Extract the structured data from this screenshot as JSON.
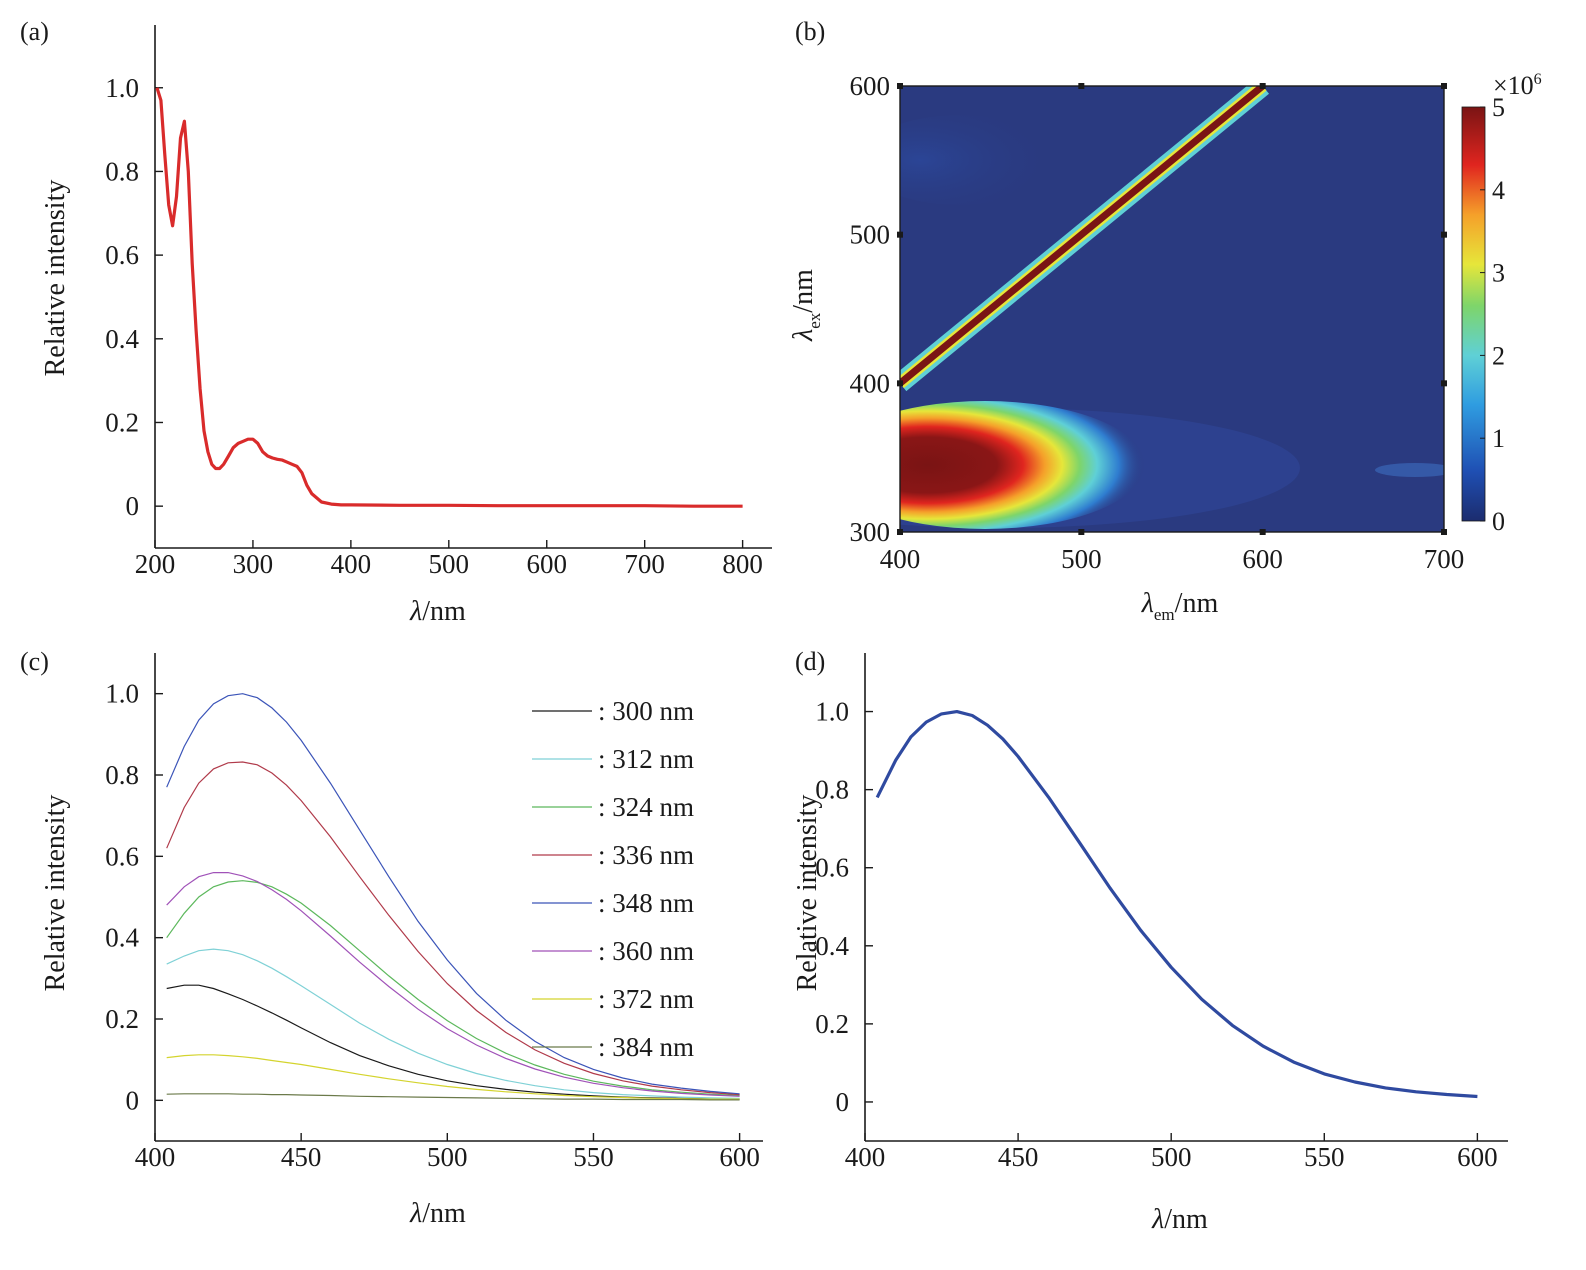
{
  "chart_data": [
    {
      "panel": "a",
      "panel_label": "(a)",
      "type": "line",
      "xlabel_symbol": "λ",
      "xlabel_unit": "/nm",
      "ylabel": "Relative intensity",
      "xlim": [
        200,
        830
      ],
      "ylim": [
        -0.1,
        1.15
      ],
      "xticks": [
        200,
        300,
        400,
        500,
        600,
        700,
        800
      ],
      "xtick_labels": [
        "200",
        "300",
        "400",
        "500",
        "600",
        "700",
        "800"
      ],
      "yticks": [
        0,
        0.2,
        0.4,
        0.6,
        0.8,
        1.0
      ],
      "ytick_labels": [
        "0",
        "0.2",
        "0.4",
        "0.6",
        "0.8",
        "1.0"
      ],
      "grid": false,
      "series": [
        {
          "color": "#d92b2b",
          "x": [
            202,
            206,
            210,
            214,
            218,
            222,
            226,
            230,
            234,
            238,
            242,
            246,
            250,
            254,
            258,
            262,
            266,
            270,
            275,
            280,
            285,
            290,
            295,
            300,
            305,
            310,
            315,
            320,
            325,
            330,
            335,
            340,
            345,
            350,
            355,
            360,
            370,
            380,
            390,
            400,
            450,
            500,
            550,
            600,
            650,
            700,
            750,
            800
          ],
          "y": [
            1.0,
            0.97,
            0.84,
            0.72,
            0.67,
            0.74,
            0.88,
            0.92,
            0.8,
            0.58,
            0.42,
            0.28,
            0.18,
            0.13,
            0.1,
            0.09,
            0.09,
            0.1,
            0.12,
            0.14,
            0.15,
            0.155,
            0.16,
            0.16,
            0.15,
            0.13,
            0.12,
            0.115,
            0.112,
            0.11,
            0.105,
            0.1,
            0.095,
            0.08,
            0.05,
            0.03,
            0.01,
            0.005,
            0.003,
            0.003,
            0.002,
            0.002,
            0.001,
            0.001,
            0.001,
            0.001,
            0.0,
            0.0
          ]
        }
      ]
    },
    {
      "panel": "b",
      "panel_label": "(b)",
      "type": "heatmap",
      "xlabel_symbol": "λ",
      "xlabel_sub": "em",
      "xlabel_unit": "/nm",
      "ylabel_symbol": "λ",
      "ylabel_sub": "ex",
      "ylabel_unit": "/nm",
      "xlim": [
        400,
        700
      ],
      "ylim": [
        300,
        600
      ],
      "xticks": [
        400,
        500,
        600,
        700
      ],
      "xtick_labels": [
        "400",
        "500",
        "600",
        "700"
      ],
      "yticks": [
        300,
        400,
        500,
        600
      ],
      "ytick_labels": [
        "300",
        "400",
        "500",
        "600"
      ],
      "colorbar": {
        "range": [
          0,
          5
        ],
        "ticks": [
          0,
          1,
          2,
          3,
          4,
          5
        ],
        "tick_labels": [
          "0",
          "1",
          "2",
          "3",
          "4",
          "5"
        ],
        "multiplier_base": "×10",
        "multiplier_exp": "6"
      },
      "features": {
        "rayleigh_band": {
          "ex_from": 400,
          "ex_to": 600,
          "em_equals_ex": true,
          "peak": 5.0
        },
        "main_peak": {
          "em": 415,
          "ex": 345,
          "peak": 5.0
        },
        "background": 0.3
      }
    },
    {
      "panel": "c",
      "panel_label": "(c)",
      "type": "line",
      "xlabel_symbol": "λ",
      "xlabel_unit": "/nm",
      "ylabel": "Relative intensity",
      "xlim": [
        400,
        608
      ],
      "ylim": [
        -0.1,
        1.1
      ],
      "xticks": [
        400,
        450,
        500,
        550,
        600
      ],
      "xtick_labels": [
        "400",
        "450",
        "500",
        "550",
        "600"
      ],
      "yticks": [
        0,
        0.2,
        0.4,
        0.6,
        0.8,
        1.0
      ],
      "ytick_labels": [
        "0",
        "0.2",
        "0.4",
        "0.6",
        "0.8",
        "1.0"
      ],
      "grid": false,
      "x": [
        404,
        410,
        415,
        420,
        425,
        430,
        435,
        440,
        445,
        450,
        460,
        470,
        480,
        490,
        500,
        510,
        520,
        530,
        540,
        550,
        560,
        570,
        580,
        590,
        600
      ],
      "series": [
        {
          "name": ": 300 nm",
          "color": "#1a1a1a",
          "values": [
            0.275,
            0.283,
            0.283,
            0.275,
            0.262,
            0.248,
            0.232,
            0.215,
            0.197,
            0.178,
            0.142,
            0.11,
            0.085,
            0.064,
            0.048,
            0.036,
            0.027,
            0.02,
            0.015,
            0.011,
            0.008,
            0.006,
            0.005,
            0.004,
            0.003
          ]
        },
        {
          "name": ": 312 nm",
          "color": "#7fd1d6",
          "values": [
            0.335,
            0.355,
            0.368,
            0.372,
            0.368,
            0.358,
            0.343,
            0.325,
            0.304,
            0.282,
            0.236,
            0.19,
            0.15,
            0.116,
            0.088,
            0.066,
            0.049,
            0.036,
            0.026,
            0.019,
            0.014,
            0.011,
            0.008,
            0.006,
            0.005
          ]
        },
        {
          "name": ": 324 nm",
          "color": "#5cb85c",
          "values": [
            0.4,
            0.46,
            0.5,
            0.525,
            0.537,
            0.54,
            0.536,
            0.525,
            0.507,
            0.485,
            0.43,
            0.368,
            0.306,
            0.248,
            0.196,
            0.152,
            0.116,
            0.087,
            0.064,
            0.047,
            0.035,
            0.026,
            0.02,
            0.015,
            0.012
          ]
        },
        {
          "name": ": 336 nm",
          "color": "#b03a4a",
          "values": [
            0.62,
            0.72,
            0.78,
            0.815,
            0.83,
            0.832,
            0.825,
            0.805,
            0.775,
            0.737,
            0.648,
            0.55,
            0.455,
            0.366,
            0.287,
            0.221,
            0.167,
            0.124,
            0.091,
            0.066,
            0.048,
            0.035,
            0.026,
            0.019,
            0.014
          ]
        },
        {
          "name": ": 348 nm",
          "color": "#3b54b8",
          "values": [
            0.77,
            0.87,
            0.935,
            0.975,
            0.995,
            1.0,
            0.99,
            0.965,
            0.93,
            0.885,
            0.78,
            0.665,
            0.55,
            0.44,
            0.345,
            0.263,
            0.197,
            0.145,
            0.105,
            0.076,
            0.055,
            0.04,
            0.03,
            0.022,
            0.016
          ]
        },
        {
          "name": ": 360 nm",
          "color": "#a052b8",
          "values": [
            0.48,
            0.525,
            0.55,
            0.56,
            0.56,
            0.552,
            0.538,
            0.518,
            0.494,
            0.466,
            0.404,
            0.34,
            0.28,
            0.224,
            0.176,
            0.136,
            0.103,
            0.077,
            0.057,
            0.042,
            0.031,
            0.023,
            0.017,
            0.013,
            0.01
          ]
        },
        {
          "name": ": 372 nm",
          "color": "#d4d42e",
          "values": [
            0.105,
            0.11,
            0.112,
            0.112,
            0.11,
            0.107,
            0.103,
            0.098,
            0.093,
            0.088,
            0.076,
            0.064,
            0.053,
            0.043,
            0.034,
            0.027,
            0.021,
            0.016,
            0.012,
            0.009,
            0.007,
            0.005,
            0.004,
            0.003,
            0.003
          ]
        },
        {
          "name": ": 384 nm",
          "color": "#6b7a4a",
          "values": [
            0.015,
            0.016,
            0.016,
            0.016,
            0.016,
            0.015,
            0.015,
            0.014,
            0.014,
            0.013,
            0.012,
            0.01,
            0.009,
            0.008,
            0.007,
            0.006,
            0.005,
            0.004,
            0.003,
            0.003,
            0.002,
            0.002,
            0.002,
            0.001,
            0.001
          ]
        }
      ]
    },
    {
      "panel": "d",
      "panel_label": "(d)",
      "type": "line",
      "xlabel_symbol": "λ",
      "xlabel_unit": "/nm",
      "ylabel": "Relative intensity",
      "xlim": [
        400,
        610
      ],
      "ylim": [
        -0.1,
        1.15
      ],
      "xticks": [
        400,
        450,
        500,
        550,
        600
      ],
      "xtick_labels": [
        "400",
        "450",
        "500",
        "550",
        "600"
      ],
      "yticks": [
        0,
        0.2,
        0.4,
        0.6,
        0.8,
        1.0
      ],
      "ytick_labels": [
        "0",
        "0.2",
        "0.4",
        "0.6",
        "0.8",
        "1.0"
      ],
      "grid": false,
      "series": [
        {
          "color": "#2f4aa0",
          "x": [
            404,
            410,
            415,
            420,
            425,
            430,
            435,
            440,
            445,
            450,
            460,
            470,
            480,
            490,
            500,
            510,
            520,
            530,
            540,
            550,
            560,
            570,
            580,
            590,
            600
          ],
          "y": [
            0.78,
            0.875,
            0.935,
            0.973,
            0.994,
            1.0,
            0.99,
            0.965,
            0.93,
            0.885,
            0.78,
            0.665,
            0.548,
            0.44,
            0.345,
            0.263,
            0.196,
            0.143,
            0.102,
            0.072,
            0.051,
            0.036,
            0.026,
            0.019,
            0.014
          ]
        }
      ]
    }
  ]
}
